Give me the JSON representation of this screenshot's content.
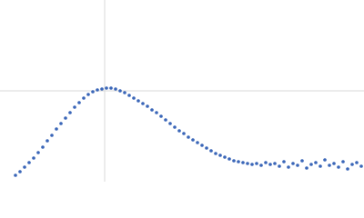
{
  "chart_data": {
    "type": "scatter",
    "xlim": [
      0,
      400
    ],
    "ylim": [
      0,
      200
    ],
    "xticks": [
      115
    ],
    "yticks": [
      100
    ],
    "grid": true,
    "series": [
      {
        "color": "#3a66b8",
        "x": [
          17,
          22,
          27,
          32,
          37,
          42,
          47,
          52,
          57,
          62,
          67,
          72,
          77,
          82,
          87,
          92,
          97,
          102,
          107,
          112,
          117,
          122,
          127,
          132,
          137,
          142,
          147,
          152,
          157,
          162,
          167,
          172,
          177,
          182,
          187,
          192,
          197,
          202,
          207,
          212,
          217,
          222,
          227,
          232,
          237,
          242,
          247,
          252,
          257,
          262,
          267,
          272,
          277,
          282,
          287,
          292,
          297,
          302,
          307,
          312,
          317,
          322,
          327,
          332,
          337,
          342,
          347,
          352,
          357,
          362,
          367,
          372,
          377,
          382,
          387,
          392,
          397
        ],
        "values": [
          7,
          11,
          16,
          21,
          26,
          32,
          38,
          45,
          51,
          58,
          64,
          70,
          76,
          82,
          87,
          92,
          96,
          99,
          101,
          102,
          103,
          103,
          102,
          100,
          98,
          95,
          92,
          89,
          86,
          83,
          79,
          76,
          72,
          68,
          64,
          60,
          56,
          53,
          49,
          46,
          43,
          40,
          37,
          34,
          31,
          29,
          27,
          25,
          23,
          22,
          21,
          20,
          19,
          20,
          18,
          21,
          19,
          20,
          17,
          22,
          16,
          20,
          18,
          23,
          15,
          19,
          21,
          17,
          24,
          18,
          20,
          16,
          22,
          14,
          19,
          21,
          17
        ]
      }
    ]
  }
}
